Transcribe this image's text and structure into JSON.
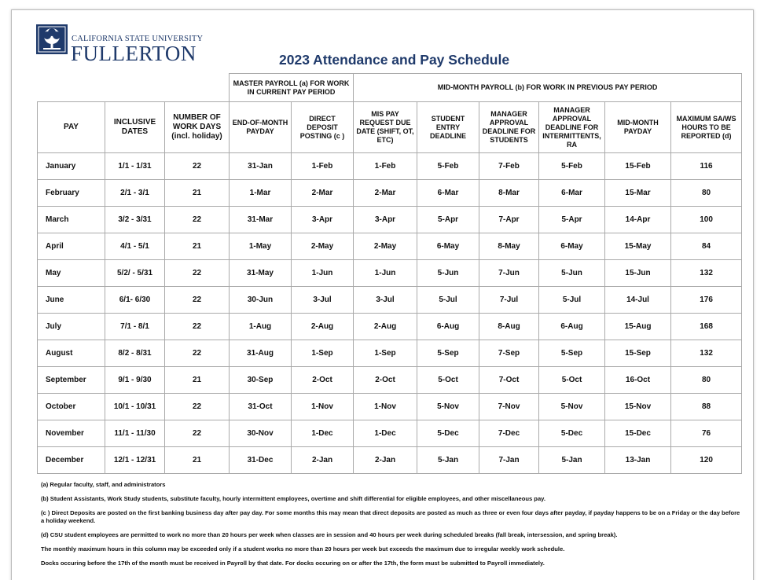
{
  "header": {
    "university": "CALIFORNIA STATE UNIVERSITY",
    "campus": "FULLERTON",
    "title": "2023 Attendance and Pay Schedule"
  },
  "table": {
    "groups": [
      "MASTER PAYROLL (a) FOR WORK IN CURRENT PAY PERIOD",
      "MID-MONTH PAYROLL (b) FOR WORK IN PREVIOUS PAY PERIOD"
    ],
    "columns": [
      "PAY",
      "INCLUSIVE DATES",
      "NUMBER OF WORK DAYS (incl. holiday)",
      "END-OF-MONTH PAYDAY",
      "DIRECT DEPOSIT POSTING (c )",
      "MIS PAY REQUEST DUE DATE (SHIFT, OT, ETC)",
      "STUDENT ENTRY DEADLINE",
      "MANAGER APPROVAL DEADLINE FOR STUDENTS",
      "MANAGER APPROVAL DEADLINE FOR INTERMITTENTS, RA",
      "MID-MONTH PAYDAY",
      "MAXIMUM SA/WS HOURS TO BE REPORTED (d)"
    ],
    "rows": [
      [
        "January",
        "1/1 - 1/31",
        22,
        "31-Jan",
        "1-Feb",
        "1-Feb",
        "5-Feb",
        "7-Feb",
        "5-Feb",
        "15-Feb",
        116
      ],
      [
        "February",
        "2/1 - 3/1",
        21,
        "1-Mar",
        "2-Mar",
        "2-Mar",
        "6-Mar",
        "8-Mar",
        "6-Mar",
        "15-Mar",
        80
      ],
      [
        "March",
        "3/2 - 3/31",
        22,
        "31-Mar",
        "3-Apr",
        "3-Apr",
        "5-Apr",
        "7-Apr",
        "5-Apr",
        "14-Apr",
        100
      ],
      [
        "April",
        "4/1 - 5/1",
        21,
        "1-May",
        "2-May",
        "2-May",
        "6-May",
        "8-May",
        "6-May",
        "15-May",
        84
      ],
      [
        "May",
        "5/2/ - 5/31",
        22,
        "31-May",
        "1-Jun",
        "1-Jun",
        "5-Jun",
        "7-Jun",
        "5-Jun",
        "15-Jun",
        132
      ],
      [
        "June",
        "6/1- 6/30",
        22,
        "30-Jun",
        "3-Jul",
        "3-Jul",
        "5-Jul",
        "7-Jul",
        "5-Jul",
        "14-Jul",
        176
      ],
      [
        "July",
        "7/1 - 8/1",
        22,
        "1-Aug",
        "2-Aug",
        "2-Aug",
        "6-Aug",
        "8-Aug",
        "6-Aug",
        "15-Aug",
        168
      ],
      [
        "August",
        "8/2 - 8/31",
        22,
        "31-Aug",
        "1-Sep",
        "1-Sep",
        "5-Sep",
        "7-Sep",
        "5-Sep",
        "15-Sep",
        132
      ],
      [
        "September",
        "9/1 - 9/30",
        21,
        "30-Sep",
        "2-Oct",
        "2-Oct",
        "5-Oct",
        "7-Oct",
        "5-Oct",
        "16-Oct",
        80
      ],
      [
        "October",
        "10/1 - 10/31",
        22,
        "31-Oct",
        "1-Nov",
        "1-Nov",
        "5-Nov",
        "7-Nov",
        "5-Nov",
        "15-Nov",
        88
      ],
      [
        "November",
        "11/1 - 11/30",
        22,
        "30-Nov",
        "1-Dec",
        "1-Dec",
        "5-Dec",
        "7-Dec",
        "5-Dec",
        "15-Dec",
        76
      ],
      [
        "December",
        "12/1 - 12/31",
        21,
        "31-Dec",
        "2-Jan",
        "2-Jan",
        "5-Jan",
        "7-Jan",
        "5-Jan",
        "13-Jan",
        120
      ]
    ]
  },
  "footnotes": [
    "(a) Regular faculty, staff, and administrators",
    "(b) Student Assistants, Work Study students, substitute faculty, hourly intermittent employees, overtime and shift differential for eligible employees, and other miscellaneous pay.",
    "(c ) Direct Deposits are posted on the first banking business day after pay day. For some months this may mean that direct deposits are posted as much as three or even four days after payday, if payday happens to be on a Friday or the day before a holiday weekend.",
    "(d) CSU student employees are permitted to work no more than 20 hours per week when classes are in session and 40 hours per week during scheduled breaks (fall break, intersession, and spring break).",
    "The monthly maximum hours in this column may be exceeded only if a student works no more than 20 hours per week but exceeds the maximum due to irregular weekly work schedule.",
    "Docks occuring before the 17th of the month must be received in Payroll by that date. For docks occuring on or after the 17th, the form must be submitted to Payroll immediately."
  ]
}
